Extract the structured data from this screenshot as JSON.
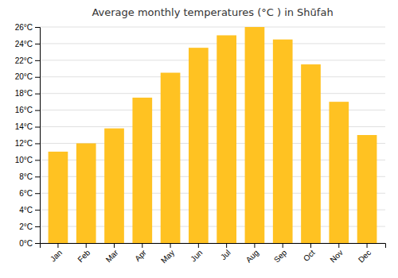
{
  "chart_data": {
    "type": "bar",
    "title": "Average monthly temperatures (°C ) in Shūfah",
    "categories": [
      "Jan",
      "Feb",
      "Mar",
      "Apr",
      "May",
      "Jun",
      "Jul",
      "Aug",
      "Sep",
      "Oct",
      "Nov",
      "Dec"
    ],
    "values": [
      11.0,
      12.0,
      13.8,
      17.5,
      20.5,
      23.5,
      25.0,
      26.0,
      24.5,
      21.5,
      17.0,
      13.0
    ],
    "color": "#FFC222",
    "ylim": [
      0,
      26
    ],
    "yticks": [
      {
        "value": 0,
        "label": "0°C"
      },
      {
        "value": 2,
        "label": "2°C"
      },
      {
        "value": 4,
        "label": "4°C"
      },
      {
        "value": 6,
        "label": "6°C"
      },
      {
        "value": 8,
        "label": "8°C"
      },
      {
        "value": 10,
        "label": "10°C"
      },
      {
        "value": 12,
        "label": "12°C"
      },
      {
        "value": 14,
        "label": "14°C"
      },
      {
        "value": 16,
        "label": "16°C"
      },
      {
        "value": 18,
        "label": "18°C"
      },
      {
        "value": 20,
        "label": "20°C"
      },
      {
        "value": 22,
        "label": "22°C"
      },
      {
        "value": 24,
        "label": "24°C"
      },
      {
        "value": 26,
        "label": "26°C"
      }
    ],
    "grid": true
  }
}
